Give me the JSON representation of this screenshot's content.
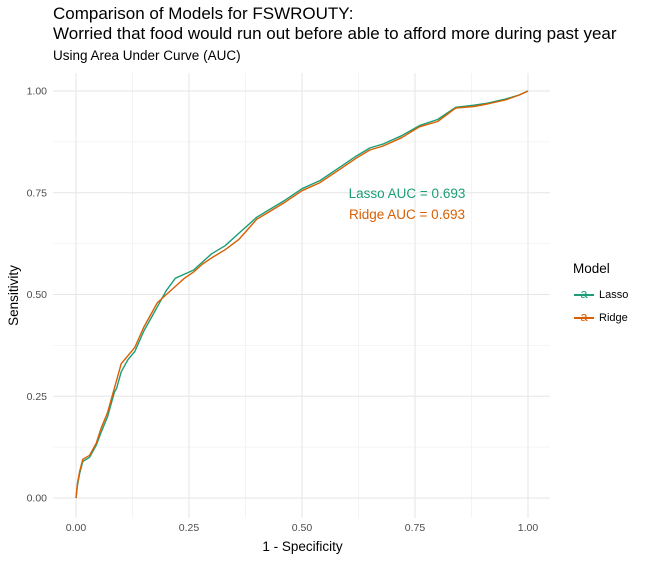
{
  "chart_data": {
    "type": "line",
    "title_lines": [
      "Comparison of Models for FSWROUTY:",
      "Worried that food would run out before able to afford more during past year"
    ],
    "subtitle": "Using Area Under Curve (AUC)",
    "xlabel": "1 - Specificity",
    "ylabel": "Sensitivity",
    "xlim": [
      0,
      1
    ],
    "ylim": [
      0,
      1
    ],
    "x_ticks": [
      "0.00",
      "0.25",
      "0.50",
      "0.75",
      "1.00"
    ],
    "y_ticks": [
      "0.00",
      "0.25",
      "0.50",
      "0.75",
      "1.00"
    ],
    "grid": true,
    "legend": {
      "title": "Model",
      "position": "right"
    },
    "series": [
      {
        "name": "Lasso",
        "color": "#1B9E77",
        "x": [
          0,
          0.003,
          0.008,
          0.015,
          0.03,
          0.045,
          0.055,
          0.07,
          0.085,
          0.09,
          0.1,
          0.115,
          0.13,
          0.15,
          0.165,
          0.18,
          0.2,
          0.22,
          0.24,
          0.26,
          0.28,
          0.3,
          0.33,
          0.36,
          0.38,
          0.4,
          0.43,
          0.46,
          0.5,
          0.54,
          0.58,
          0.62,
          0.65,
          0.68,
          0.72,
          0.76,
          0.8,
          0.84,
          0.88,
          0.91,
          0.95,
          0.98,
          1.0
        ],
        "y": [
          0,
          0.03,
          0.06,
          0.09,
          0.1,
          0.13,
          0.16,
          0.2,
          0.26,
          0.27,
          0.31,
          0.34,
          0.36,
          0.41,
          0.44,
          0.47,
          0.51,
          0.54,
          0.55,
          0.56,
          0.58,
          0.6,
          0.62,
          0.65,
          0.67,
          0.69,
          0.71,
          0.73,
          0.76,
          0.78,
          0.81,
          0.84,
          0.86,
          0.87,
          0.89,
          0.915,
          0.93,
          0.96,
          0.965,
          0.97,
          0.98,
          0.99,
          1.0
        ]
      },
      {
        "name": "Ridge",
        "color": "#D95F02",
        "x": [
          0,
          0.003,
          0.008,
          0.015,
          0.03,
          0.045,
          0.055,
          0.07,
          0.085,
          0.09,
          0.1,
          0.115,
          0.13,
          0.15,
          0.165,
          0.18,
          0.2,
          0.22,
          0.24,
          0.26,
          0.28,
          0.3,
          0.33,
          0.36,
          0.38,
          0.4,
          0.43,
          0.46,
          0.5,
          0.54,
          0.58,
          0.62,
          0.65,
          0.68,
          0.72,
          0.76,
          0.8,
          0.84,
          0.88,
          0.91,
          0.95,
          0.98,
          1.0
        ],
        "y": [
          0,
          0.035,
          0.065,
          0.095,
          0.105,
          0.135,
          0.17,
          0.21,
          0.27,
          0.29,
          0.33,
          0.35,
          0.37,
          0.42,
          0.45,
          0.48,
          0.5,
          0.52,
          0.54,
          0.555,
          0.575,
          0.59,
          0.61,
          0.635,
          0.66,
          0.685,
          0.705,
          0.725,
          0.755,
          0.775,
          0.805,
          0.835,
          0.855,
          0.865,
          0.885,
          0.912,
          0.925,
          0.958,
          0.962,
          0.968,
          0.978,
          0.99,
          1.0
        ]
      }
    ],
    "annotations": [
      {
        "text": "Lasso AUC = 0.693",
        "series": "Lasso"
      },
      {
        "text": "Ridge AUC = 0.693",
        "series": "Ridge"
      }
    ]
  }
}
